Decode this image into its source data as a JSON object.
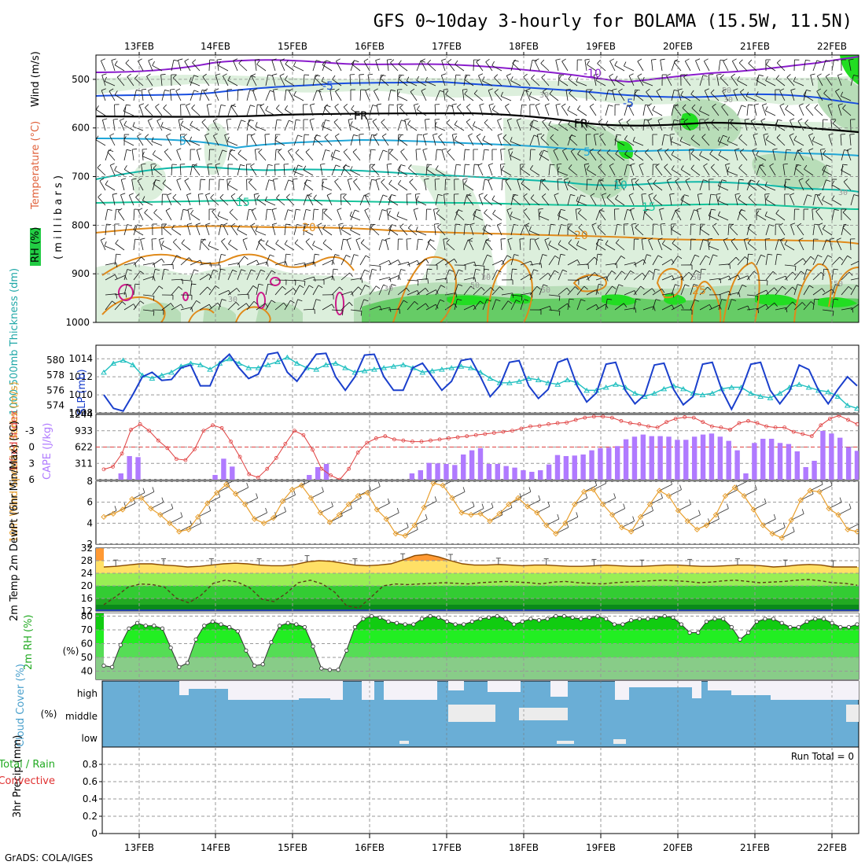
{
  "title": "GFS 0~10day 3-hourly for BOLAMA (15.5W, 11.5N)",
  "credit": "GrADS: COLA/IGES",
  "dates": [
    "13FEB",
    "14FEB",
    "15FEB",
    "16FEB",
    "17FEB",
    "18FEB",
    "19FEB",
    "20FEB",
    "21FEB",
    "22FEB"
  ],
  "colors": {
    "rh_light": "#dcefdc",
    "rh_mid": "#8fd48f",
    "rh_bright": "#22dd22",
    "temp_cold": "#8a1ccc",
    "temp_blue": "#1a4fe0",
    "temp_cyan": "#1fa6d8",
    "temp_teal": "#10b8a8",
    "temp_orange": "#e08a1a",
    "freeze": "#000000",
    "slp": "#1a3fcc",
    "thick": "#20c0c0",
    "cape": "#b07aff",
    "li": "#e04040",
    "wind": "#e8a030",
    "cloud": "#6aaed6"
  },
  "chart_data": [
    {
      "type": "contour",
      "name": "upper-air",
      "ylabel_parts": [
        "RH (%)",
        "Temperature (°C)",
        "Wind (m/s)"
      ],
      "ylabel_unit": "( m i l l i b a r s )",
      "y_ticks": [
        "500",
        "600",
        "700",
        "800",
        "900",
        "1000"
      ],
      "ylim": [
        450,
        1000
      ],
      "temperature_isotherms": [
        {
          "label": "-10",
          "level": 488
        },
        {
          "label": "-5",
          "level": 530
        },
        {
          "label": "FR",
          "level": 580
        },
        {
          "label": "5",
          "level": 650
        },
        {
          "label": "10",
          "level": 720
        },
        {
          "label": "15",
          "level": 760
        },
        {
          "label": "20",
          "level": 808
        },
        {
          "label": "25",
          "level": 880
        }
      ],
      "rh_labels": [
        "30",
        "50",
        "30",
        "30",
        "50",
        "30",
        "30",
        "50",
        "50",
        "30",
        "50"
      ]
    },
    {
      "type": "line",
      "name": "slp-thickness",
      "ylabel_left": "1000-500mb Thickness (dm)",
      "ylabel_right": "SLP (mb)",
      "left_ticks": [
        "574",
        "576",
        "578",
        "580"
      ],
      "right_ticks": [
        "1008",
        "1010",
        "1012",
        "1014"
      ],
      "ylim_slp": [
        1008,
        1015.5
      ],
      "ylim_thickness": [
        573,
        582
      ],
      "slp": [
        1010.0,
        1008.5,
        1008.2,
        1010.0,
        1012.0,
        1012.5,
        1011.6,
        1011.7,
        1013.0,
        1013.3,
        1011.0,
        1011.0,
        1013.5,
        1014.5,
        1013.0,
        1011.8,
        1012.3,
        1014.5,
        1014.7,
        1012.5,
        1011.5,
        1013.0,
        1014.5,
        1014.6,
        1012.0,
        1010.5,
        1012.0,
        1014.4,
        1014.5,
        1012.0,
        1010.5,
        1010.5,
        1013.0,
        1013.5,
        1012.0,
        1010.5,
        1011.5,
        1013.8,
        1014.0,
        1012.0,
        1009.8,
        1011.0,
        1013.6,
        1013.8,
        1011.0,
        1009.6,
        1010.6,
        1013.6,
        1014.0,
        1011.0,
        1009.2,
        1010.2,
        1013.4,
        1013.6,
        1010.5,
        1009.0,
        1010.0,
        1013.3,
        1013.5,
        1010.6,
        1008.9,
        1009.8,
        1013.4,
        1013.6,
        1010.5,
        1008.4,
        1010.5,
        1013.4,
        1013.6,
        1010.5,
        1009.0,
        1010.4,
        1013.3,
        1012.8,
        1010.5,
        1009.0,
        1010.6,
        1012.0,
        1011.0
      ],
      "thickness": [
        578.4,
        579.6,
        580.0,
        579.4,
        578.0,
        577.6,
        578.0,
        578.4,
        579.2,
        579.6,
        579.4,
        578.8,
        579.6,
        580.2,
        579.6,
        579.0,
        579.0,
        579.4,
        579.8,
        580.4,
        579.6,
        579.0,
        578.8,
        579.4,
        579.6,
        579.0,
        578.4,
        578.6,
        578.8,
        579.0,
        579.2,
        579.4,
        579.0,
        578.4,
        578.6,
        578.8,
        579.0,
        579.2,
        579.0,
        578.4,
        577.6,
        577.0,
        577.0,
        577.2,
        577.6,
        577.4,
        577.0,
        576.8,
        577.4,
        577.0,
        576.0,
        576.0,
        576.4,
        576.8,
        576.4,
        575.6,
        575.2,
        575.6,
        576.2,
        576.6,
        576.2,
        575.6,
        575.4,
        575.6,
        576.2,
        576.4,
        576.4,
        575.6,
        575.2,
        575.0,
        575.6,
        576.4,
        576.8,
        576.4,
        576.0,
        575.8,
        575.2,
        574.0,
        573.6
      ]
    },
    {
      "type": "bar-line",
      "name": "cape-li",
      "ylabel_left": "Lifted Index",
      "ylabel_right": "CAPE (J/kg)",
      "li_ticks": [
        "-3",
        "0",
        "3",
        "6"
      ],
      "cape_ticks": [
        "311",
        "622",
        "933",
        "1244"
      ],
      "cape_max": 1244,
      "li_range": [
        -6,
        6
      ],
      "cape": [
        0,
        0,
        120,
        450,
        430,
        0,
        0,
        0,
        0,
        0,
        0,
        0,
        0,
        90,
        400,
        250,
        0,
        0,
        0,
        0,
        0,
        0,
        0,
        0,
        90,
        240,
        300,
        0,
        0,
        0,
        0,
        0,
        0,
        0,
        0,
        0,
        120,
        180,
        320,
        310,
        300,
        280,
        480,
        560,
        600,
        300,
        300,
        260,
        230,
        180,
        150,
        180,
        290,
        470,
        450,
        460,
        480,
        560,
        600,
        610,
        640,
        770,
        820,
        860,
        830,
        830,
        820,
        760,
        760,
        820,
        860,
        880,
        820,
        740,
        560,
        120,
        700,
        780,
        780,
        700,
        680,
        540,
        240,
        360,
        930,
        880,
        800,
        620,
        550
      ],
      "li": [
        4.1,
        3.6,
        1.2,
        -3.2,
        -4.2,
        -3.0,
        -1.2,
        0.2,
        2.2,
        2.4,
        0.4,
        -3.0,
        -4.0,
        -3.5,
        -1.0,
        1.8,
        5.0,
        5.6,
        4.0,
        2.0,
        -0.6,
        -3.0,
        -2.2,
        0.5,
        4.0,
        5.2,
        6.0,
        4.0,
        1.0,
        -0.8,
        -1.6,
        -2.0,
        -1.4,
        -1.2,
        -1.0,
        -1.0,
        -1.2,
        -1.4,
        -1.6,
        -1.8,
        -2.0,
        -2.2,
        -2.4,
        -2.6,
        -2.8,
        -3.0,
        -3.4,
        -3.8,
        -3.9,
        -4.2,
        -4.4,
        -4.5,
        -5.0,
        -5.4,
        -5.6,
        -5.6,
        -5.4,
        -4.8,
        -4.4,
        -4.2,
        -3.8,
        -3.6,
        -4.6,
        -5.2,
        -5.5,
        -5.4,
        -4.6,
        -3.8,
        -3.6,
        -3.2,
        -4.4,
        -4.8,
        -4.4,
        -3.8,
        -3.6,
        -3.6,
        -2.8,
        -2.4,
        -2.0,
        -4.0,
        -5.2,
        -5.8,
        -5.0,
        -4.2
      ]
    },
    {
      "type": "line",
      "name": "wind",
      "ylabel": "10m Wind Speed & Barbs (m/s)",
      "y_ticks": [
        "2",
        "4",
        "6",
        "8"
      ],
      "ylim": [
        2,
        8
      ],
      "speed": [
        4.6,
        4.9,
        5.3,
        6.3,
        6.4,
        5.4,
        4.8,
        4.0,
        3.2,
        3.4,
        4.6,
        5.9,
        6.9,
        7.7,
        6.8,
        5.8,
        4.4,
        4.0,
        4.5,
        6.1,
        7.2,
        7.6,
        6.4,
        5.0,
        4.1,
        4.8,
        5.8,
        6.6,
        6.9,
        5.3,
        4.4,
        3.0,
        2.8,
        3.8,
        5.5,
        7.8,
        7.6,
        6.4,
        5.0,
        4.8,
        4.9,
        4.2,
        4.9,
        5.8,
        6.4,
        5.6,
        5.0,
        3.8,
        3.0,
        4.0,
        5.8,
        7.0,
        7.2,
        5.8,
        4.8,
        3.6,
        3.2,
        4.6,
        5.8,
        7.1,
        6.6,
        5.2,
        4.2,
        3.4,
        3.8,
        4.8,
        6.6,
        7.4,
        6.6,
        5.3,
        3.8,
        3.0,
        2.6,
        4.3,
        6.2,
        7.1,
        7.0,
        5.4,
        4.8,
        3.4,
        3.2
      ]
    },
    {
      "type": "area-line",
      "name": "temp-dewpt",
      "ylabel": "2m Temp 2m DewPt (6hr Min/Max) (°C)",
      "y_ticks": [
        "12",
        "16",
        "20",
        "24",
        "28",
        "32"
      ],
      "ylim": [
        12,
        32
      ],
      "temperature": [
        26.0,
        26.2,
        26.6,
        27.0,
        27.0,
        26.6,
        26.4,
        26.0,
        26.2,
        26.6,
        27.0,
        27.2,
        27.0,
        26.6,
        26.4,
        26.4,
        26.8,
        27.6,
        28.0,
        27.8,
        27.2,
        26.6,
        26.4,
        26.6,
        27.0,
        28.2,
        29.6,
        30.0,
        29.2,
        28.0,
        27.0,
        26.6,
        26.6,
        26.8,
        26.6,
        26.4,
        26.6,
        26.6,
        26.4,
        26.2,
        26.2,
        26.4,
        26.6,
        26.4,
        26.2,
        26.2,
        26.4,
        26.6,
        26.6,
        26.4,
        26.2,
        26.2,
        26.4,
        26.6,
        26.6,
        26.4,
        26.0,
        26.2,
        26.6,
        26.8,
        26.6,
        26.0,
        26.0,
        26.0
      ],
      "dewpoint": [
        14.0,
        16.6,
        19.6,
        20.6,
        20.4,
        19.6,
        16.0,
        14.6,
        17.0,
        20.8,
        21.8,
        21.2,
        19.4,
        15.8,
        15.0,
        17.6,
        21.0,
        21.8,
        20.6,
        18.0,
        13.6,
        13.0,
        16.4,
        20.0,
        20.6,
        20.4,
        20.6,
        20.8,
        21.0,
        20.8,
        20.6,
        21.0,
        21.2,
        21.4,
        21.2,
        21.0,
        20.6,
        21.2,
        21.4,
        21.0,
        20.8,
        20.6,
        21.0,
        21.2,
        21.4,
        21.6,
        21.8,
        21.6,
        21.4,
        21.0,
        21.2,
        21.6,
        21.8,
        21.4,
        21.0,
        21.2,
        21.4,
        21.8,
        22.0,
        21.6,
        21.0,
        20.8,
        20.2
      ]
    },
    {
      "type": "area",
      "name": "rh2m",
      "ylabel": "2m RH (%)",
      "y_ticks": [
        "40",
        "50",
        "60",
        "70",
        "80"
      ],
      "ylim": [
        34,
        82
      ],
      "rh": [
        44,
        43,
        59,
        71,
        75,
        73,
        73,
        71,
        57,
        43,
        46,
        63,
        73,
        76,
        74,
        72,
        69,
        55,
        44,
        45,
        61,
        73,
        75,
        74,
        72,
        58,
        42,
        41,
        41,
        55,
        72,
        78,
        80,
        79,
        76,
        75,
        74,
        74,
        78,
        80,
        79,
        76,
        74,
        74,
        76,
        78,
        79,
        80,
        78,
        74,
        76,
        78,
        77,
        78,
        80,
        80,
        79,
        78,
        79,
        80,
        78,
        74,
        74,
        77,
        78,
        78,
        79,
        80,
        79,
        74,
        68,
        68,
        76,
        78,
        78,
        72,
        63,
        68,
        76,
        78,
        78,
        75,
        72,
        72,
        76,
        78,
        78,
        75,
        72,
        72,
        74
      ]
    },
    {
      "type": "heatmap",
      "name": "cloud",
      "ylabel": "Cloud Cover (%)",
      "levels": [
        "high",
        "middle",
        "low"
      ]
    },
    {
      "type": "bar",
      "name": "precip",
      "ylabel": "3hr Precip (mm)",
      "ylabel_legend": [
        "Total / Rain",
        "Convective"
      ],
      "run_total": "Run Total = 0",
      "y_ticks": [
        "0",
        "0.2",
        "0.4",
        "0.6",
        "0.8"
      ],
      "ylim": [
        0,
        1
      ],
      "values": []
    }
  ]
}
